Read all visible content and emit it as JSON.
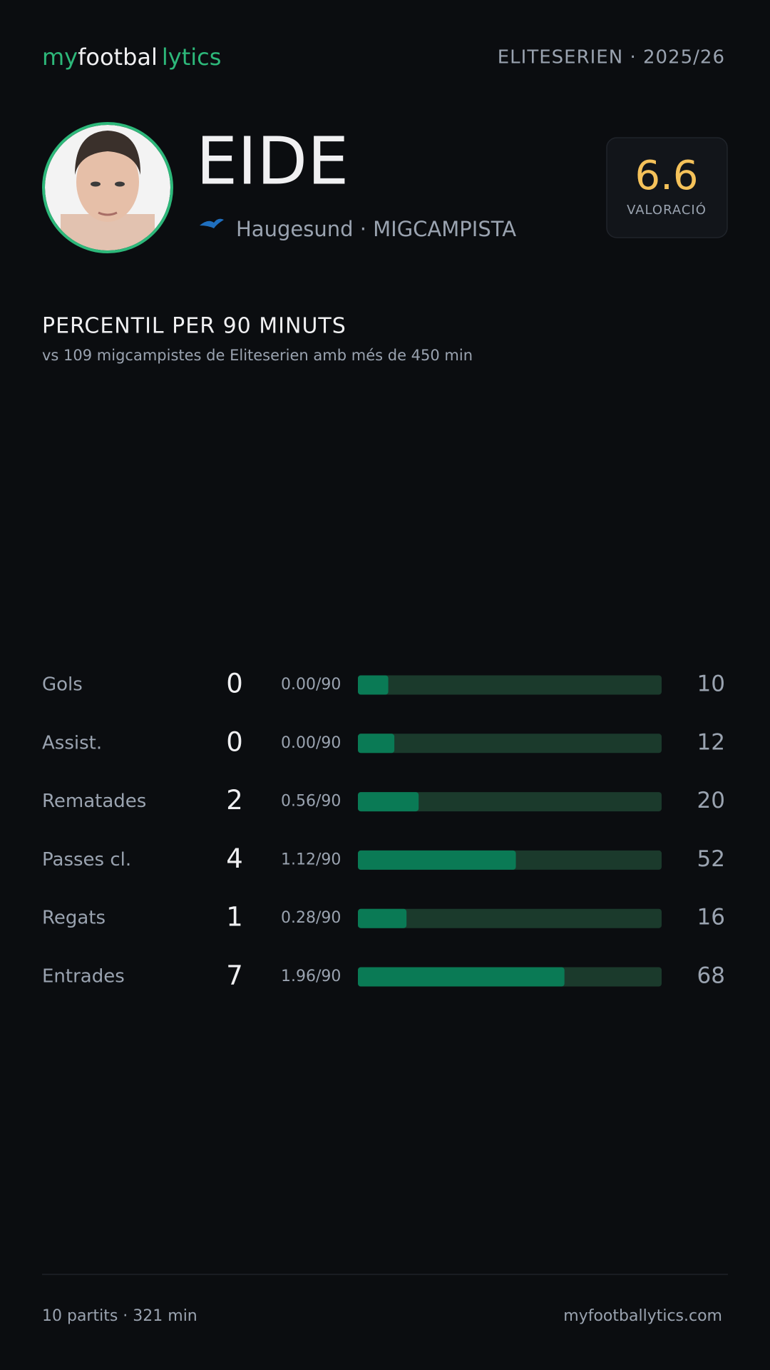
{
  "header": {
    "logo": [
      "my",
      "footbal",
      "lytics"
    ],
    "league": "ELITESERIEN · 2025/26"
  },
  "player": {
    "name": "EIDE",
    "club_line": "Haugesund · MIGCAMPISTA",
    "rating": "6.6",
    "rating_label": "VALORACIÓ"
  },
  "section": {
    "title": "PERCENTIL PER 90 MINUTS",
    "subtitle": "vs 109 migcampistes de Eliteserien amb més de 450 min"
  },
  "stats": {
    "xlim": [
      0,
      100
    ],
    "rows": [
      {
        "label": "Gols",
        "total": 0,
        "per90": "0.00/90",
        "percentile": 10
      },
      {
        "label": "Assist.",
        "total": 0,
        "per90": "0.00/90",
        "percentile": 12
      },
      {
        "label": "Rematades",
        "total": 2,
        "per90": "0.56/90",
        "percentile": 20
      },
      {
        "label": "Passes cl.",
        "total": 4,
        "per90": "1.12/90",
        "percentile": 52
      },
      {
        "label": "Regats",
        "total": 1,
        "per90": "0.28/90",
        "percentile": 16
      },
      {
        "label": "Entrades",
        "total": 7,
        "per90": "1.96/90",
        "percentile": 68
      }
    ]
  },
  "footer": {
    "left": "10 partits · 321 min",
    "right": "myfootballytics.com"
  }
}
